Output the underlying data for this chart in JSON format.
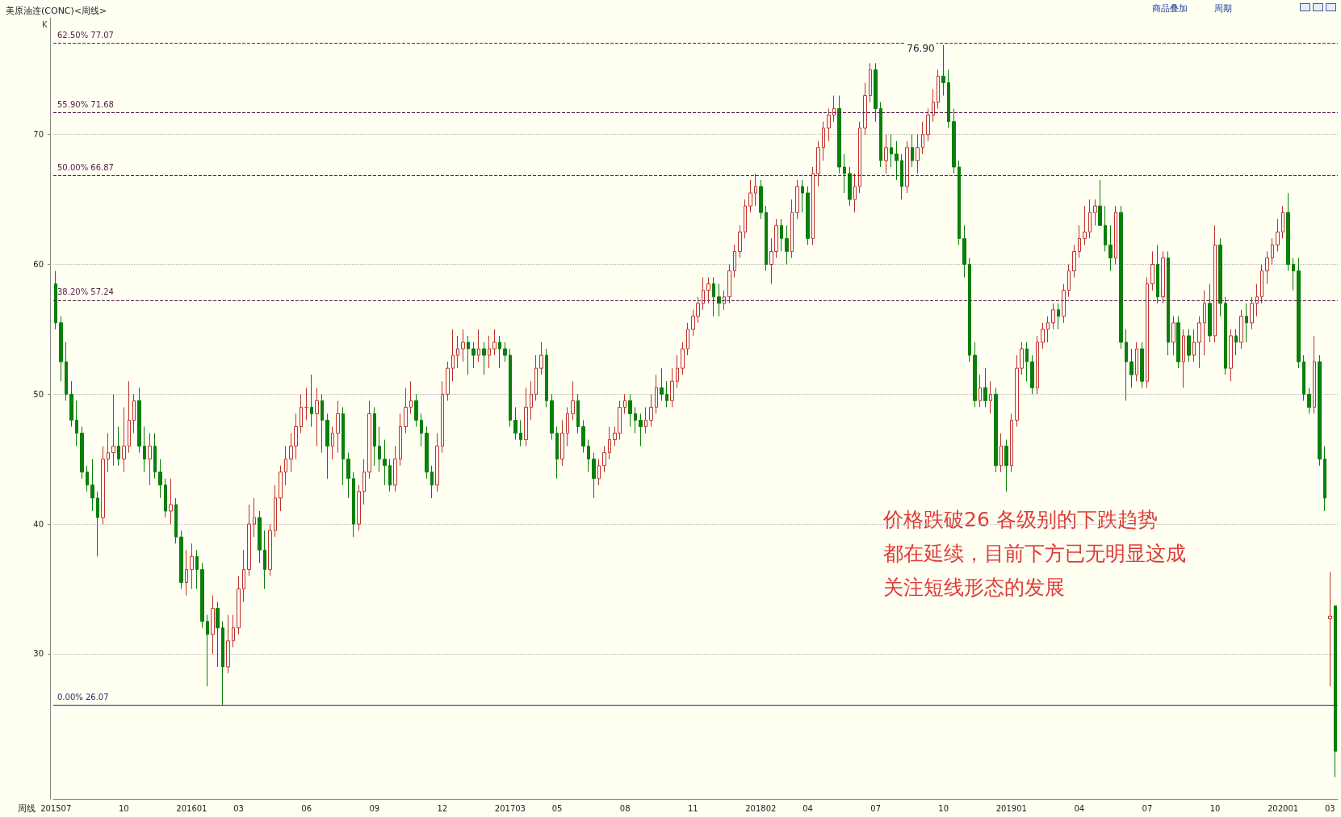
{
  "chart_data": {
    "type": "candlestick",
    "title": "美原油连(CONC)<周线>",
    "xlabel": "周线",
    "categories": [
      "201507",
      null,
      null,
      null,
      null,
      null,
      null,
      null,
      null,
      null,
      null,
      null,
      null,
      "10",
      null,
      null,
      null,
      null,
      null,
      null,
      null,
      null,
      null,
      null,
      null,
      null,
      "201601",
      null,
      null,
      null,
      null,
      null,
      null,
      null,
      null,
      "03",
      null,
      null,
      null,
      null,
      null,
      null,
      null,
      null,
      null,
      null,
      null,
      null,
      "06",
      null,
      null,
      null,
      null,
      null,
      null,
      null,
      null,
      null,
      null,
      null,
      null,
      "09",
      null,
      null,
      null,
      null,
      null,
      null,
      null,
      null,
      null,
      null,
      null,
      null,
      "12",
      null,
      null,
      null,
      null,
      null,
      null,
      null,
      null,
      null,
      null,
      null,
      null,
      "201703",
      null,
      null,
      null,
      null,
      null,
      null,
      null,
      null,
      "05",
      null,
      null,
      null,
      null,
      null,
      null,
      null,
      null,
      null,
      null,
      null,
      null,
      "08",
      null,
      null,
      null,
      null,
      null,
      null,
      null,
      null,
      null,
      null,
      null,
      null,
      "11",
      null,
      null,
      null,
      null,
      null,
      null,
      null,
      null,
      null,
      null,
      null,
      null,
      "201802",
      null,
      null,
      null,
      null,
      null,
      null,
      null,
      null,
      "04",
      null,
      null,
      null,
      null,
      null,
      null,
      null,
      null,
      null,
      null,
      null,
      null,
      "07",
      null,
      null,
      null,
      null,
      null,
      null,
      null,
      null,
      null,
      null,
      null,
      null,
      "10",
      null,
      null,
      null,
      null,
      null,
      null,
      null,
      null,
      null,
      null,
      null,
      null,
      "201901",
      null,
      null,
      null,
      null,
      null,
      null,
      null,
      null,
      null,
      null,
      null,
      null,
      "04",
      null,
      null,
      null,
      null,
      null,
      null,
      null,
      null,
      null,
      null,
      null,
      null,
      "07",
      null,
      null,
      null,
      null,
      null,
      null,
      null,
      null,
      null,
      null,
      null,
      null,
      "10",
      null,
      null,
      null,
      null,
      null,
      null,
      null,
      null,
      null,
      null,
      null,
      null,
      "202001",
      null,
      null,
      null,
      null,
      null,
      null,
      null,
      null,
      "03",
      null
    ],
    "ohlc": [
      [
        58.5,
        59.5,
        55,
        55.5
      ],
      [
        55.5,
        56,
        51,
        52.5
      ],
      [
        52.5,
        54,
        49.5,
        50
      ],
      [
        50,
        51,
        47.5,
        48
      ],
      [
        48,
        49.5,
        46,
        47
      ],
      [
        47,
        47.5,
        43.5,
        44
      ],
      [
        44,
        44.5,
        42.5,
        43
      ],
      [
        43,
        45,
        41,
        42
      ],
      [
        42,
        42.5,
        37.5,
        40.5
      ],
      [
        40.5,
        46,
        40,
        45
      ],
      [
        45,
        47,
        44,
        45.5
      ],
      [
        45.5,
        50,
        44.5,
        46
      ],
      [
        46,
        47.5,
        44.5,
        45
      ],
      [
        45,
        49,
        44,
        46
      ],
      [
        46,
        51,
        45.5,
        48
      ],
      [
        48,
        50,
        47,
        49.5
      ],
      [
        49.5,
        50.5,
        45.5,
        46
      ],
      [
        46,
        47.5,
        44,
        45
      ],
      [
        45,
        47,
        43,
        46
      ],
      [
        46,
        47,
        43.5,
        44
      ],
      [
        44,
        45,
        42,
        43
      ],
      [
        43,
        43.5,
        40.5,
        41
      ],
      [
        41,
        43.5,
        40,
        41.5
      ],
      [
        41.5,
        42,
        38.5,
        39
      ],
      [
        39,
        39.5,
        35,
        35.5
      ],
      [
        35.5,
        38,
        34.5,
        36.5
      ],
      [
        36.5,
        38.5,
        35,
        37.5
      ],
      [
        37.5,
        38,
        35,
        36.5
      ],
      [
        36.5,
        37,
        32,
        32.5
      ],
      [
        32.5,
        33,
        27.5,
        31.5
      ],
      [
        31.5,
        34.5,
        30,
        33.5
      ],
      [
        33.5,
        34,
        29,
        32
      ],
      [
        32,
        32.5,
        26.07,
        29
      ],
      [
        29,
        33,
        28.5,
        31
      ],
      [
        31,
        33,
        30.5,
        32
      ],
      [
        32,
        36,
        31.5,
        35
      ],
      [
        35,
        38,
        34,
        36.5
      ],
      [
        36.5,
        41.5,
        36,
        40
      ],
      [
        40,
        42,
        39,
        40.5
      ],
      [
        40.5,
        41,
        37,
        38
      ],
      [
        38,
        39.5,
        35,
        36.5
      ],
      [
        36.5,
        40,
        36,
        39.5
      ],
      [
        39.5,
        43,
        39,
        42
      ],
      [
        42,
        44.5,
        41,
        44
      ],
      [
        44,
        46,
        43,
        45
      ],
      [
        45,
        47,
        44,
        46
      ],
      [
        46,
        48.5,
        45,
        47.5
      ],
      [
        47.5,
        50,
        47,
        49
      ],
      [
        49,
        50.5,
        48,
        49
      ],
      [
        49,
        51.5,
        47.5,
        48.5
      ],
      [
        48.5,
        50.5,
        46,
        49.5
      ],
      [
        49.5,
        50,
        45.5,
        48
      ],
      [
        48,
        48.5,
        43.5,
        46
      ],
      [
        46,
        47.5,
        45,
        47
      ],
      [
        47,
        49.5,
        45.5,
        48.5
      ],
      [
        48.5,
        49,
        43,
        45
      ],
      [
        45,
        45.5,
        42,
        43.5
      ],
      [
        43.5,
        44,
        39,
        40
      ],
      [
        40,
        43,
        39.5,
        42.5
      ],
      [
        42.5,
        45,
        41.5,
        44
      ],
      [
        44,
        49.5,
        43.5,
        48.5
      ],
      [
        48.5,
        49,
        44.5,
        46
      ],
      [
        46,
        47.5,
        44,
        45
      ],
      [
        45,
        46.5,
        43,
        44.5
      ],
      [
        44.5,
        45,
        42.5,
        43
      ],
      [
        43,
        46,
        42.5,
        45
      ],
      [
        45,
        48.5,
        44.5,
        47.5
      ],
      [
        47.5,
        50.5,
        47,
        49
      ],
      [
        49,
        51,
        48.5,
        49.5
      ],
      [
        49.5,
        50,
        47.5,
        48
      ],
      [
        48,
        48.5,
        46,
        47
      ],
      [
        47,
        47.5,
        43.5,
        44
      ],
      [
        44,
        44.5,
        42,
        43
      ],
      [
        43,
        47,
        42.5,
        46
      ],
      [
        46,
        51,
        45.5,
        50
      ],
      [
        50,
        52.5,
        49.5,
        52
      ],
      [
        52,
        55,
        51,
        53
      ],
      [
        53,
        54.5,
        52,
        53.5
      ],
      [
        53.5,
        55,
        52.5,
        54
      ],
      [
        54,
        54.5,
        51.5,
        53.5
      ],
      [
        53.5,
        54,
        52,
        53
      ],
      [
        53,
        55,
        52.5,
        53.5
      ],
      [
        53.5,
        54,
        51.5,
        53
      ],
      [
        53,
        54.5,
        52,
        53.5
      ],
      [
        53.5,
        55,
        53,
        54
      ],
      [
        54,
        54.5,
        52,
        53.5
      ],
      [
        53.5,
        54,
        52.5,
        53
      ],
      [
        53,
        53.5,
        47.5,
        48
      ],
      [
        48,
        49,
        46.5,
        47
      ],
      [
        47,
        48,
        46,
        46.5
      ],
      [
        46.5,
        50.5,
        46,
        49
      ],
      [
        49,
        51,
        48,
        50
      ],
      [
        50,
        53,
        49.5,
        52
      ],
      [
        52,
        54,
        51.5,
        53
      ],
      [
        53,
        53.5,
        49,
        49.5
      ],
      [
        49.5,
        50,
        46.5,
        47
      ],
      [
        47,
        47.5,
        43.5,
        45
      ],
      [
        45,
        48,
        44.5,
        47
      ],
      [
        47,
        49,
        46,
        48.5
      ],
      [
        48.5,
        51,
        48,
        49.5
      ],
      [
        49.5,
        50,
        47,
        47.5
      ],
      [
        47.5,
        48,
        45.5,
        46
      ],
      [
        46,
        46.5,
        44,
        45
      ],
      [
        45,
        45.5,
        42,
        43.5
      ],
      [
        43.5,
        45,
        43,
        44.5
      ],
      [
        44.5,
        46,
        44,
        45.5
      ],
      [
        45.5,
        47.5,
        45,
        46.5
      ],
      [
        46.5,
        47.5,
        46,
        47
      ],
      [
        47,
        49.5,
        46.5,
        49
      ],
      [
        49,
        50,
        48.5,
        49.5
      ],
      [
        49.5,
        50,
        47.5,
        48.5
      ],
      [
        48.5,
        49,
        47,
        48
      ],
      [
        48,
        48.5,
        46,
        47.5
      ],
      [
        47.5,
        49,
        47,
        48
      ],
      [
        48,
        50,
        47.5,
        49
      ],
      [
        49,
        51.5,
        48.5,
        50.5
      ],
      [
        50.5,
        52,
        49.5,
        50
      ],
      [
        50,
        51,
        49,
        49.5
      ],
      [
        49.5,
        52,
        49,
        51
      ],
      [
        51,
        53,
        50.5,
        52
      ],
      [
        52,
        54,
        51.5,
        53.5
      ],
      [
        53.5,
        55.5,
        53,
        55
      ],
      [
        55,
        56.5,
        54.5,
        56
      ],
      [
        56,
        57.5,
        55.5,
        57
      ],
      [
        57,
        59,
        56.5,
        58
      ],
      [
        58,
        59,
        57,
        58.5
      ],
      [
        58.5,
        59,
        56,
        57.5
      ],
      [
        57.5,
        58.5,
        56,
        57
      ],
      [
        57,
        58,
        56.5,
        57.5
      ],
      [
        57.5,
        60,
        57,
        59.5
      ],
      [
        59.5,
        61.5,
        59,
        61
      ],
      [
        61,
        63,
        60.5,
        62.5
      ],
      [
        62.5,
        65,
        62,
        64.5
      ],
      [
        64.5,
        66.5,
        64,
        65.5
      ],
      [
        65.5,
        67,
        64.5,
        66
      ],
      [
        66,
        66.5,
        63.5,
        64
      ],
      [
        64,
        64.5,
        59.5,
        60
      ],
      [
        60,
        62,
        58.5,
        61
      ],
      [
        61,
        63.5,
        60.5,
        63
      ],
      [
        63,
        63.5,
        61,
        62
      ],
      [
        62,
        63,
        60,
        61
      ],
      [
        61,
        65,
        60.5,
        64
      ],
      [
        64,
        66.5,
        63.5,
        66
      ],
      [
        66,
        66.5,
        64,
        65.5
      ],
      [
        65.5,
        66,
        61.5,
        62
      ],
      [
        62,
        67.5,
        61.5,
        67
      ],
      [
        67,
        69.5,
        66,
        69
      ],
      [
        69,
        71,
        68,
        70.5
      ],
      [
        70.5,
        72,
        69.5,
        71.5
      ],
      [
        71.5,
        73,
        71,
        72
      ],
      [
        72,
        73,
        67,
        67.5
      ],
      [
        67.5,
        68.5,
        65.5,
        67
      ],
      [
        67,
        67.5,
        64.5,
        65
      ],
      [
        65,
        67,
        64,
        66
      ],
      [
        66,
        71,
        65.5,
        70.5
      ],
      [
        70.5,
        74,
        70,
        73
      ],
      [
        73,
        75.5,
        72.5,
        75
      ],
      [
        75,
        75.5,
        71,
        72
      ],
      [
        72,
        72.5,
        67.5,
        68
      ],
      [
        68,
        70,
        67,
        69
      ],
      [
        69,
        70,
        67.5,
        68.5
      ],
      [
        68.5,
        69.5,
        66.5,
        68
      ],
      [
        68,
        68.5,
        65,
        66
      ],
      [
        66,
        69.5,
        65.5,
        69
      ],
      [
        69,
        70,
        67.5,
        68
      ],
      [
        68,
        70,
        67,
        69
      ],
      [
        69,
        71,
        68.5,
        70
      ],
      [
        70,
        72,
        69.5,
        71.5
      ],
      [
        71.5,
        73.5,
        71,
        72.5
      ],
      [
        72.5,
        75,
        72,
        74.5
      ],
      [
        74.5,
        76.9,
        73,
        74
      ],
      [
        74,
        75,
        70.5,
        71
      ],
      [
        71,
        72,
        67,
        67.5
      ],
      [
        67.5,
        68,
        61.5,
        62
      ],
      [
        62,
        63,
        59,
        60
      ],
      [
        60,
        60.5,
        52.5,
        53
      ],
      [
        53,
        54,
        49,
        49.5
      ],
      [
        49.5,
        51.5,
        49,
        50.5
      ],
      [
        50.5,
        52,
        49,
        49.5
      ],
      [
        49.5,
        51,
        48.5,
        50
      ],
      [
        50,
        50.5,
        44,
        44.5
      ],
      [
        44.5,
        47,
        44,
        46
      ],
      [
        46,
        46.5,
        42.5,
        44.5
      ],
      [
        44.5,
        48.5,
        44,
        48
      ],
      [
        48,
        53,
        47.5,
        52
      ],
      [
        52,
        54,
        51.5,
        53.5
      ],
      [
        53.5,
        54,
        51,
        52.5
      ],
      [
        52.5,
        53,
        50,
        50.5
      ],
      [
        50.5,
        54.5,
        50,
        54
      ],
      [
        54,
        55.5,
        53.5,
        55
      ],
      [
        55,
        56,
        54,
        55.5
      ],
      [
        55.5,
        57,
        55,
        56.5
      ],
      [
        56.5,
        57,
        55,
        56
      ],
      [
        56,
        58.5,
        55.5,
        58
      ],
      [
        58,
        60,
        57.5,
        59.5
      ],
      [
        59.5,
        61.5,
        59,
        61
      ],
      [
        61,
        63,
        60.5,
        62
      ],
      [
        62,
        64.5,
        61.5,
        62.5
      ],
      [
        62.5,
        65,
        62,
        64
      ],
      [
        64,
        65,
        63,
        64.5
      ],
      [
        64.5,
        66.5,
        63,
        63
      ],
      [
        63,
        64.5,
        61,
        61.5
      ],
      [
        61.5,
        63,
        59.5,
        60.5
      ],
      [
        60.5,
        64.5,
        60,
        64
      ],
      [
        64,
        64.5,
        53.5,
        54
      ],
      [
        54,
        55,
        49.5,
        52.5
      ],
      [
        52.5,
        53.5,
        50.5,
        51.5
      ],
      [
        51.5,
        54,
        51,
        53.5
      ],
      [
        53.5,
        54,
        50.5,
        51
      ],
      [
        51,
        59,
        50.5,
        58.5
      ],
      [
        58.5,
        61,
        58,
        60
      ],
      [
        60,
        61.5,
        57,
        57.5
      ],
      [
        57.5,
        61,
        57,
        60.5
      ],
      [
        60.5,
        61,
        53,
        54
      ],
      [
        54,
        56,
        53,
        55.5
      ],
      [
        55.5,
        56,
        52,
        52.5
      ],
      [
        52.5,
        55,
        50.5,
        54.5
      ],
      [
        54.5,
        55,
        52.5,
        53
      ],
      [
        53,
        55,
        52.5,
        54
      ],
      [
        54,
        56,
        52,
        55.5
      ],
      [
        55.5,
        58,
        53,
        57
      ],
      [
        57,
        58.5,
        54,
        54.5
      ],
      [
        54.5,
        63,
        54,
        61.5
      ],
      [
        61.5,
        62,
        56,
        57
      ],
      [
        57,
        57.5,
        51.5,
        52
      ],
      [
        52,
        55,
        51,
        54.5
      ],
      [
        54.5,
        55,
        53,
        54
      ],
      [
        54,
        56.5,
        53.5,
        56
      ],
      [
        56,
        57,
        54,
        55.5
      ],
      [
        55.5,
        57.5,
        55,
        57
      ],
      [
        57,
        58.5,
        56,
        57.5
      ],
      [
        57.5,
        60,
        57,
        59.5
      ],
      [
        59.5,
        61,
        58.5,
        60.5
      ],
      [
        60.5,
        62,
        60,
        61.5
      ],
      [
        61.5,
        63.5,
        61,
        62.5
      ],
      [
        62.5,
        64.5,
        62,
        64
      ],
      [
        64,
        65.5,
        59.5,
        60
      ],
      [
        60,
        60.5,
        58,
        59.5
      ],
      [
        59.5,
        60.5,
        52,
        52.5
      ],
      [
        52.5,
        53,
        49.5,
        50
      ],
      [
        50,
        50.5,
        48.5,
        49
      ],
      [
        49,
        54.5,
        48.5,
        52.5
      ],
      [
        52.5,
        53,
        44.5,
        45
      ],
      [
        45,
        46,
        41,
        42
      ],
      [
        32.7,
        36.3,
        27.5,
        32.9
      ],
      [
        33.7,
        33.7,
        20.5,
        22.5
      ]
    ],
    "ylim": [
      18.8,
      79
    ],
    "yticks": [
      30,
      40,
      50,
      60,
      70
    ],
    "grid": "y",
    "ref_lines": [
      {
        "axis": "y",
        "value": 77.07,
        "label": "62.50% 77.07",
        "color": "#5a2050",
        "line_style": "dashed"
      },
      {
        "axis": "y",
        "value": 71.68,
        "label": "55.90% 71.68",
        "color": "#5a2050",
        "line_style": "dashed"
      },
      {
        "axis": "y",
        "value": 66.87,
        "label": "50.00% 66.87",
        "color": "#5a2050",
        "line_style": "dashed"
      },
      {
        "axis": "y",
        "value": 57.24,
        "label": "38.20% 57.24",
        "color": "#5a2050",
        "line_style": "dashed"
      },
      {
        "axis": "y",
        "value": 26.07,
        "label": "0.00% 26.07",
        "color": "#2a2a6a",
        "line_style": "solid"
      }
    ],
    "annotations": [
      "K",
      "商品叠加",
      "周期",
      {
        "text": "76.90",
        "y": 76.9
      },
      "价格跌破26 各级别的下跌趋势",
      "都在延续，目前下方已无明显这成",
      "关注短线形态的发展"
    ]
  }
}
